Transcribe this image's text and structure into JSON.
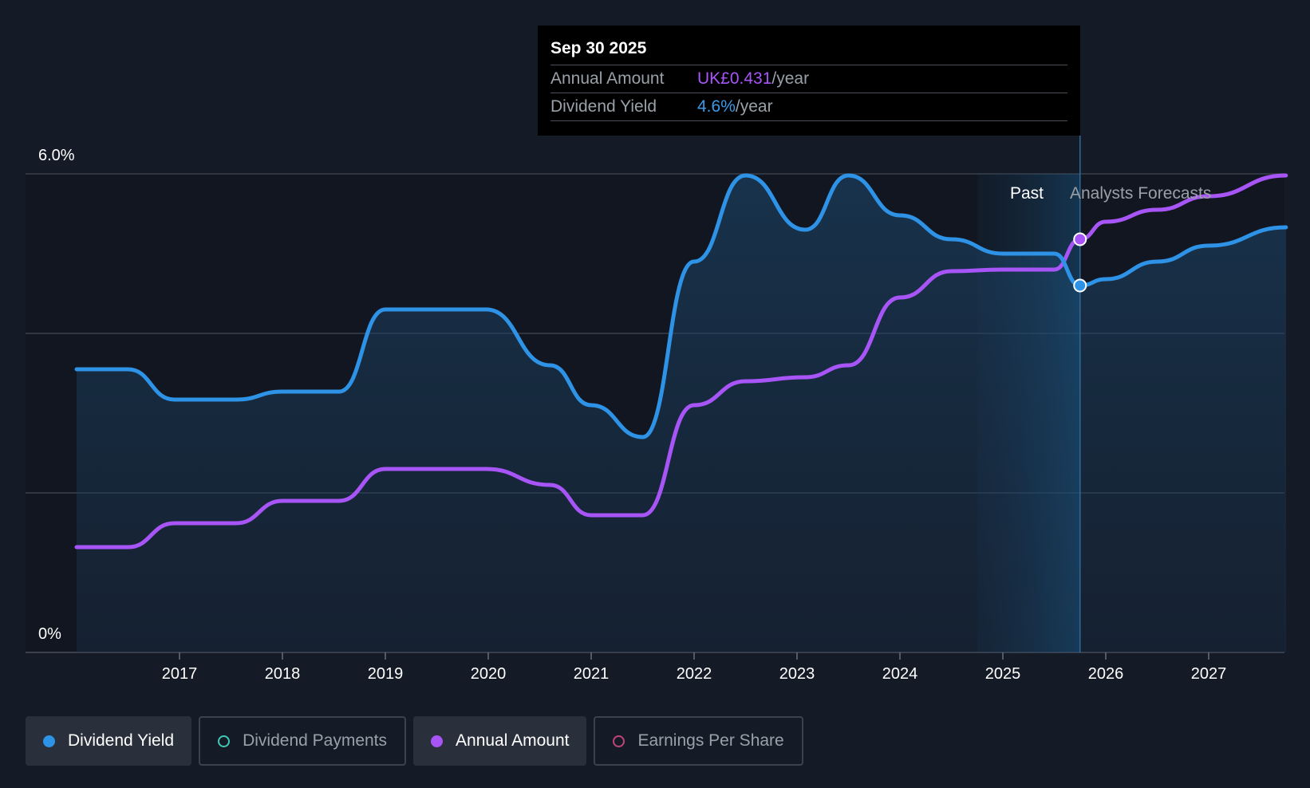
{
  "tooltip": {
    "date": "Sep 30 2025",
    "rows": [
      {
        "label": "Annual Amount",
        "value": "UK£0.431",
        "unit": "/year"
      },
      {
        "label": "Dividend Yield",
        "value": "4.6%",
        "unit": "/year"
      }
    ]
  },
  "legend": {
    "items": [
      {
        "label": "Dividend Yield",
        "active": true,
        "color": "#2e93e6"
      },
      {
        "label": "Dividend Payments",
        "active": false,
        "color": "#3ec9b4"
      },
      {
        "label": "Annual Amount",
        "active": true,
        "color": "#a855f7"
      },
      {
        "label": "Earnings Per Share",
        "active": false,
        "color": "#c0447a"
      }
    ]
  },
  "colors": {
    "background": "#151b26",
    "yield": "#2e93e6",
    "annual": "#a855f7",
    "grid": "#3a404a"
  },
  "chart_data": {
    "type": "line",
    "y_tick_labels": [
      "6.0%",
      "0%"
    ],
    "ylim": [
      0,
      6.0
    ],
    "xlim": [
      2015.5,
      2027.75
    ],
    "x_tick_labels": [
      "2017",
      "2018",
      "2019",
      "2020",
      "2021",
      "2022",
      "2023",
      "2024",
      "2025",
      "2026",
      "2027"
    ],
    "region_labels": {
      "past": "Past",
      "forecast": "Analysts Forecasts"
    },
    "forecast_start": 2025.75,
    "past_band_start": 2024.75,
    "series": [
      {
        "name": "Dividend Yield",
        "x": [
          2016.0,
          2016.5,
          2016.95,
          2017.55,
          2018.0,
          2018.55,
          2019.0,
          2019.98,
          2020.6,
          2021.0,
          2021.5,
          2022.0,
          2022.5,
          2023.08,
          2023.5,
          2024.0,
          2024.5,
          2025.0,
          2025.5,
          2025.75,
          2026.0,
          2026.5,
          2027.0,
          2027.75
        ],
        "y": [
          3.55,
          3.55,
          3.17,
          3.17,
          3.27,
          3.27,
          4.3,
          4.3,
          3.6,
          3.1,
          2.7,
          4.9,
          5.98,
          5.3,
          5.98,
          5.48,
          5.18,
          5.0,
          5.0,
          4.6,
          4.68,
          4.9,
          5.1,
          5.33
        ]
      },
      {
        "name": "Annual Amount",
        "x": [
          2016.0,
          2016.5,
          2016.95,
          2017.55,
          2018.0,
          2018.55,
          2019.0,
          2019.98,
          2020.6,
          2021.0,
          2021.5,
          2022.0,
          2022.5,
          2023.08,
          2023.5,
          2024.0,
          2024.5,
          2025.0,
          2025.5,
          2025.75,
          2026.0,
          2026.5,
          2027.0,
          2027.75
        ],
        "y": [
          1.32,
          1.32,
          1.62,
          1.62,
          1.9,
          1.9,
          2.3,
          2.3,
          2.1,
          1.72,
          1.72,
          3.1,
          3.4,
          3.45,
          3.6,
          4.45,
          4.78,
          4.8,
          4.8,
          5.18,
          5.4,
          5.55,
          5.72,
          5.98
        ]
      }
    ],
    "highlight_x": 2025.75
  }
}
